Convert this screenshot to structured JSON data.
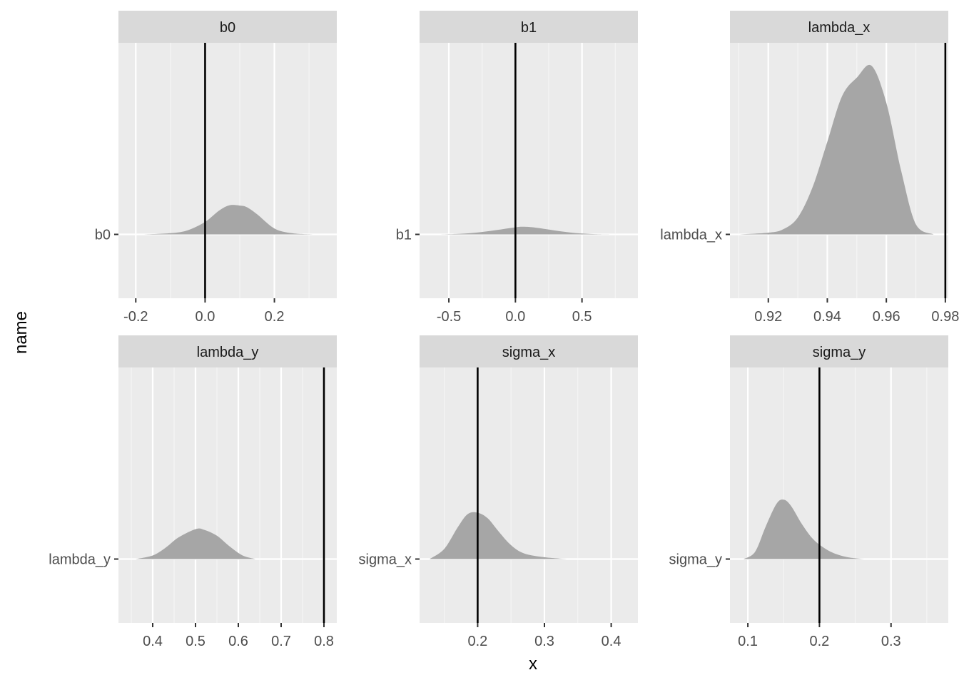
{
  "chart_data": {
    "type": "density-ridges",
    "xlabel": "x",
    "ylabel": "name",
    "colors": {
      "panel_bg": "#ebebeb",
      "grid_major": "#ffffff",
      "grid_minor": "#f5f5f5",
      "strip_bg": "#d9d9d9",
      "fill": "#a6a6a6",
      "ref_line": "#000000"
    },
    "panels": [
      {
        "title": "b0",
        "y_label": "b0",
        "xlim": [
          -0.25,
          0.38
        ],
        "xticks": [
          -0.2,
          0.0,
          0.2
        ],
        "xtick_labels": [
          "-0.2",
          "0.0",
          "0.2"
        ],
        "ref_line": 0.0,
        "density_height": 0.155,
        "density": {
          "x": [
            -0.175,
            -0.1,
            -0.05,
            0.0,
            0.04,
            0.07,
            0.1,
            0.12,
            0.15,
            0.2,
            0.25,
            0.31
          ],
          "y": [
            0.0,
            0.04,
            0.14,
            0.42,
            0.8,
            0.98,
            0.97,
            0.92,
            0.68,
            0.2,
            0.04,
            0.0
          ]
        }
      },
      {
        "title": "b1",
        "y_label": "b1",
        "xlim": [
          -0.72,
          0.92
        ],
        "xticks": [
          -0.5,
          0.0,
          0.5
        ],
        "xtick_labels": [
          "-0.5",
          "0.0",
          "0.5"
        ],
        "ref_line": 0.0,
        "density_height": 0.04,
        "density": {
          "x": [
            -0.58,
            -0.45,
            -0.3,
            -0.15,
            0.0,
            0.06,
            0.15,
            0.3,
            0.45,
            0.6,
            0.74
          ],
          "y": [
            0.0,
            0.06,
            0.22,
            0.55,
            0.92,
            1.0,
            0.88,
            0.5,
            0.18,
            0.04,
            0.0
          ]
        }
      },
      {
        "title": "lambda_x",
        "y_label": "lambda_x",
        "xlim": [
          0.907,
          0.981
        ],
        "xticks": [
          0.92,
          0.94,
          0.96,
          0.98
        ],
        "xtick_labels": [
          "0.92",
          "0.94",
          "0.96",
          "0.98"
        ],
        "ref_line": 0.98,
        "density_height": 0.88,
        "density": {
          "x": [
            0.91,
            0.92,
            0.925,
            0.93,
            0.935,
            0.94,
            0.945,
            0.95,
            0.955,
            0.96,
            0.965,
            0.97,
            0.976
          ],
          "y": [
            0.0,
            0.01,
            0.03,
            0.1,
            0.28,
            0.55,
            0.82,
            0.93,
            1.0,
            0.78,
            0.38,
            0.06,
            0.0
          ]
        }
      },
      {
        "title": "lambda_y",
        "y_label": "lambda_y",
        "xlim": [
          0.32,
          0.83
        ],
        "xticks": [
          0.4,
          0.5,
          0.6,
          0.7,
          0.8
        ],
        "xtick_labels": [
          "0.4",
          "0.5",
          "0.6",
          "0.7",
          "0.8"
        ],
        "ref_line": 0.8,
        "density_height": 0.156,
        "density": {
          "x": [
            0.36,
            0.4,
            0.43,
            0.46,
            0.5,
            0.52,
            0.55,
            0.58,
            0.61,
            0.64
          ],
          "y": [
            0.0,
            0.12,
            0.38,
            0.72,
            1.0,
            0.98,
            0.78,
            0.42,
            0.12,
            0.0
          ]
        }
      },
      {
        "title": "sigma_x",
        "y_label": "sigma_x",
        "xlim": [
          0.113,
          0.44
        ],
        "xticks": [
          0.2,
          0.3,
          0.4
        ],
        "xtick_labels": [
          "0.2",
          "0.3",
          "0.4"
        ],
        "ref_line": 0.2,
        "density_height": 0.242,
        "density": {
          "x": [
            0.128,
            0.15,
            0.17,
            0.185,
            0.2,
            0.215,
            0.23,
            0.25,
            0.27,
            0.3,
            0.333
          ],
          "y": [
            0.0,
            0.22,
            0.68,
            0.97,
            1.0,
            0.88,
            0.62,
            0.3,
            0.12,
            0.04,
            0.0
          ]
        }
      },
      {
        "title": "sigma_y",
        "y_label": "sigma_y",
        "xlim": [
          0.075,
          0.38
        ],
        "xticks": [
          0.1,
          0.2,
          0.3
        ],
        "xtick_labels": [
          "0.1",
          "0.2",
          "0.3"
        ],
        "ref_line": 0.2,
        "density_height": 0.31,
        "density": {
          "x": [
            0.094,
            0.11,
            0.125,
            0.14,
            0.15,
            0.16,
            0.175,
            0.19,
            0.205,
            0.22,
            0.24,
            0.262
          ],
          "y": [
            0.0,
            0.12,
            0.55,
            0.93,
            1.0,
            0.9,
            0.6,
            0.35,
            0.2,
            0.1,
            0.03,
            0.0
          ]
        }
      }
    ]
  }
}
